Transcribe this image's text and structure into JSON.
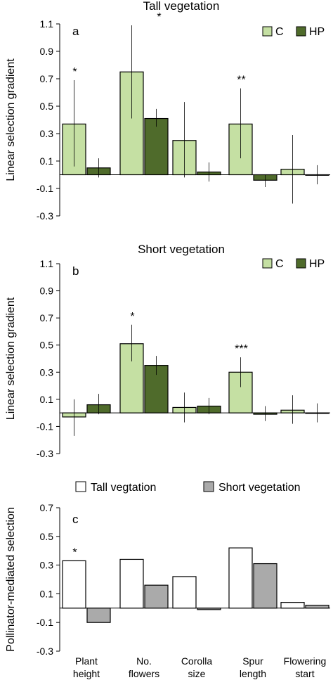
{
  "colors": {
    "C": "#c5e0a3",
    "HP": "#4f6b2b",
    "tall": "#ffffff",
    "short": "#aaaaaa",
    "axis": "#000000"
  },
  "categories": [
    [
      "Plant",
      "height"
    ],
    [
      "No.",
      "flowers"
    ],
    [
      "Corolla",
      "size"
    ],
    [
      "Spur",
      "length"
    ],
    [
      "Flowering",
      "start"
    ]
  ],
  "chart_data": [
    {
      "type": "bar",
      "title": "Tall vegetation",
      "panel_label": "a",
      "ylabel": "Linear selection gradient",
      "ylim": [
        -0.3,
        1.1
      ],
      "yticks": [
        "1.1",
        "0.9",
        "0.7",
        "0.5",
        "0.3",
        "0.1",
        "-0.1",
        "-0.3"
      ],
      "legend_position": "top-right",
      "series": [
        {
          "name": "C",
          "values": [
            0.37,
            0.75,
            0.25,
            0.37,
            0.04
          ],
          "err_low": [
            0.06,
            0.41,
            -0.02,
            0.12,
            -0.21
          ],
          "err_high": [
            0.69,
            1.09,
            0.53,
            0.63,
            0.29
          ]
        },
        {
          "name": "HP",
          "values": [
            0.05,
            0.41,
            0.02,
            -0.04,
            0.0
          ],
          "err_low": [
            -0.02,
            0.35,
            -0.05,
            -0.09,
            -0.07
          ],
          "err_high": [
            0.12,
            0.48,
            0.09,
            0.0,
            0.07
          ]
        }
      ],
      "annotations": [
        "*",
        "*",
        "",
        "**",
        ""
      ]
    },
    {
      "type": "bar",
      "title": "Short vegetation",
      "panel_label": "b",
      "ylabel": "Linear selection gradient",
      "ylim": [
        -0.3,
        1.1
      ],
      "yticks": [
        "1.1",
        "0.9",
        "0.7",
        "0.5",
        "0.3",
        "0.1",
        "-0.1",
        "-0.3"
      ],
      "legend_position": "top-right",
      "series": [
        {
          "name": "C",
          "values": [
            -0.03,
            0.51,
            0.04,
            0.3,
            0.02
          ],
          "err_low": [
            -0.17,
            0.38,
            -0.07,
            0.19,
            -0.08
          ],
          "err_high": [
            0.1,
            0.65,
            0.15,
            0.41,
            0.13
          ]
        },
        {
          "name": "HP",
          "values": [
            0.06,
            0.35,
            0.05,
            -0.01,
            0.0
          ],
          "err_low": [
            -0.01,
            0.28,
            -0.01,
            -0.06,
            -0.07
          ],
          "err_high": [
            0.14,
            0.42,
            0.11,
            0.05,
            0.07
          ]
        }
      ],
      "annotations": [
        "",
        "*",
        "",
        "***",
        ""
      ]
    },
    {
      "type": "bar",
      "title": "",
      "panel_label": "c",
      "ylabel": "Pollinator-mediated selection",
      "ylim": [
        -0.3,
        0.7
      ],
      "yticks": [
        "0.7",
        "0.5",
        "0.3",
        "0.1",
        "-0.1",
        "-0.3"
      ],
      "legend_position": "top",
      "series": [
        {
          "name": "Tall vegtation",
          "values": [
            0.33,
            0.34,
            0.22,
            0.42,
            0.04
          ]
        },
        {
          "name": "Short vegetation",
          "values": [
            -0.1,
            0.16,
            -0.01,
            0.31,
            0.02
          ]
        }
      ],
      "annotations": [
        "*",
        "",
        "",
        "",
        ""
      ]
    }
  ]
}
